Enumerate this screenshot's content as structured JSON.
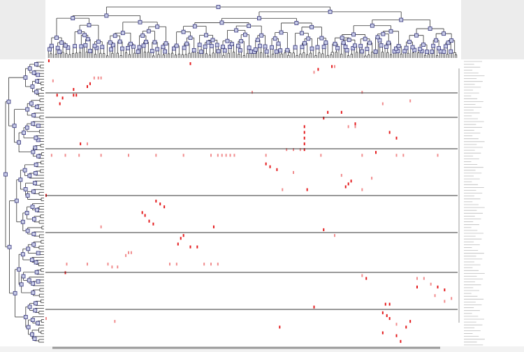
{
  "chart_data": {
    "type": "heatmap",
    "color": "#e41a1c",
    "xlim": [
      0,
      300
    ],
    "ylim": [
      0,
      100
    ],
    "cells": [
      [
        2,
        0,
        1
      ],
      [
        105,
        1,
        1
      ],
      [
        198,
        3,
        1
      ],
      [
        208,
        2,
        1
      ],
      [
        210,
        2,
        0.5
      ],
      [
        195,
        4,
        0.5
      ],
      [
        35,
        6,
        0.5
      ],
      [
        38,
        6,
        0.5
      ],
      [
        40,
        6,
        0.5
      ],
      [
        5,
        7,
        0.5
      ],
      [
        30,
        9,
        1
      ],
      [
        20,
        10,
        1
      ],
      [
        32,
        8,
        1
      ],
      [
        8,
        12,
        1
      ],
      [
        12,
        13,
        1
      ],
      [
        10,
        15,
        1
      ],
      [
        20,
        12,
        1
      ],
      [
        22,
        12,
        1
      ],
      [
        150,
        11,
        0.5
      ],
      [
        230,
        11,
        0.5
      ],
      [
        245,
        15,
        0.5
      ],
      [
        265,
        14,
        0.5
      ],
      [
        205,
        18,
        1
      ],
      [
        215,
        18,
        1
      ],
      [
        202,
        20,
        1
      ],
      [
        188,
        23,
        1
      ],
      [
        188,
        25,
        1
      ],
      [
        188,
        27,
        1
      ],
      [
        188,
        29,
        1
      ],
      [
        188,
        31,
        1
      ],
      [
        185,
        31,
        0.5
      ],
      [
        180,
        31,
        0.5
      ],
      [
        175,
        31,
        0.5
      ],
      [
        225,
        22,
        1
      ],
      [
        220,
        23,
        0.5
      ],
      [
        225,
        23,
        0.5
      ],
      [
        250,
        25,
        1
      ],
      [
        255,
        27,
        1
      ],
      [
        30,
        29,
        0.5
      ],
      [
        25,
        29,
        1
      ],
      [
        240,
        32,
        1
      ],
      [
        255,
        33,
        0.5
      ],
      [
        4,
        33,
        0.5
      ],
      [
        14,
        33,
        0.5
      ],
      [
        24,
        33,
        0.5
      ],
      [
        40,
        33,
        0.5
      ],
      [
        60,
        33,
        0.5
      ],
      [
        80,
        33,
        0.5
      ],
      [
        100,
        33,
        0.5
      ],
      [
        120,
        33,
        0.5
      ],
      [
        125,
        33,
        0.5
      ],
      [
        128,
        33,
        0.5
      ],
      [
        131,
        33,
        0.5
      ],
      [
        134,
        33,
        0.5
      ],
      [
        137,
        33,
        0.5
      ],
      [
        160,
        33,
        0.5
      ],
      [
        200,
        33,
        0.5
      ],
      [
        230,
        33,
        0.5
      ],
      [
        260,
        33,
        0.5
      ],
      [
        285,
        33,
        0.5
      ],
      [
        160,
        36,
        1
      ],
      [
        163,
        37,
        1
      ],
      [
        168,
        38,
        1
      ],
      [
        180,
        39,
        0.5
      ],
      [
        215,
        40,
        0.5
      ],
      [
        222,
        42,
        1
      ],
      [
        220,
        43,
        1
      ],
      [
        218,
        44,
        1
      ],
      [
        237,
        41,
        0.5
      ],
      [
        230,
        45,
        0.5
      ],
      [
        0,
        47,
        1
      ],
      [
        190,
        45,
        1
      ],
      [
        172,
        45,
        0.5
      ],
      [
        80,
        49,
        1
      ],
      [
        83,
        50,
        1
      ],
      [
        86,
        51,
        1
      ],
      [
        70,
        53,
        1
      ],
      [
        72,
        54,
        1
      ],
      [
        75,
        56,
        1
      ],
      [
        78,
        57,
        1
      ],
      [
        40,
        58,
        0.5
      ],
      [
        122,
        58,
        1
      ],
      [
        202,
        59,
        1
      ],
      [
        100,
        61,
        1
      ],
      [
        98,
        62,
        1
      ],
      [
        96,
        64,
        1
      ],
      [
        105,
        65,
        1
      ],
      [
        110,
        65,
        1
      ],
      [
        210,
        61,
        0.5
      ],
      [
        60,
        67,
        0.5
      ],
      [
        62,
        67,
        0.5
      ],
      [
        58,
        68,
        0.5
      ],
      [
        45,
        71,
        0.5
      ],
      [
        48,
        72,
        0.5
      ],
      [
        52,
        72,
        0.5
      ],
      [
        15,
        71,
        0.5
      ],
      [
        30,
        71,
        0.5
      ],
      [
        90,
        71,
        0.5
      ],
      [
        115,
        71,
        0.5
      ],
      [
        120,
        71,
        0.5
      ],
      [
        125,
        71,
        0.5
      ],
      [
        95,
        71,
        0.5
      ],
      [
        14,
        74,
        1
      ],
      [
        230,
        75,
        0.5
      ],
      [
        233,
        76,
        1
      ],
      [
        270,
        76,
        0.5
      ],
      [
        275,
        76,
        0.5
      ],
      [
        280,
        78,
        0.5
      ],
      [
        285,
        79,
        1
      ],
      [
        290,
        80,
        1
      ],
      [
        270,
        79,
        1
      ],
      [
        283,
        82,
        0.5
      ],
      [
        290,
        84,
        0.5
      ],
      [
        295,
        83,
        0.5
      ],
      [
        247,
        85,
        1
      ],
      [
        250,
        85,
        1
      ],
      [
        195,
        86,
        1
      ],
      [
        245,
        88,
        1
      ],
      [
        248,
        89,
        1
      ],
      [
        250,
        90,
        1
      ],
      [
        265,
        91,
        1
      ],
      [
        262,
        93,
        1
      ],
      [
        255,
        92,
        0.5
      ],
      [
        170,
        93,
        1
      ],
      [
        245,
        95,
        1
      ],
      [
        255,
        96,
        1
      ],
      [
        258,
        98,
        1
      ],
      [
        0,
        90,
        0.5
      ],
      [
        50,
        91,
        0.5
      ]
    ]
  }
}
